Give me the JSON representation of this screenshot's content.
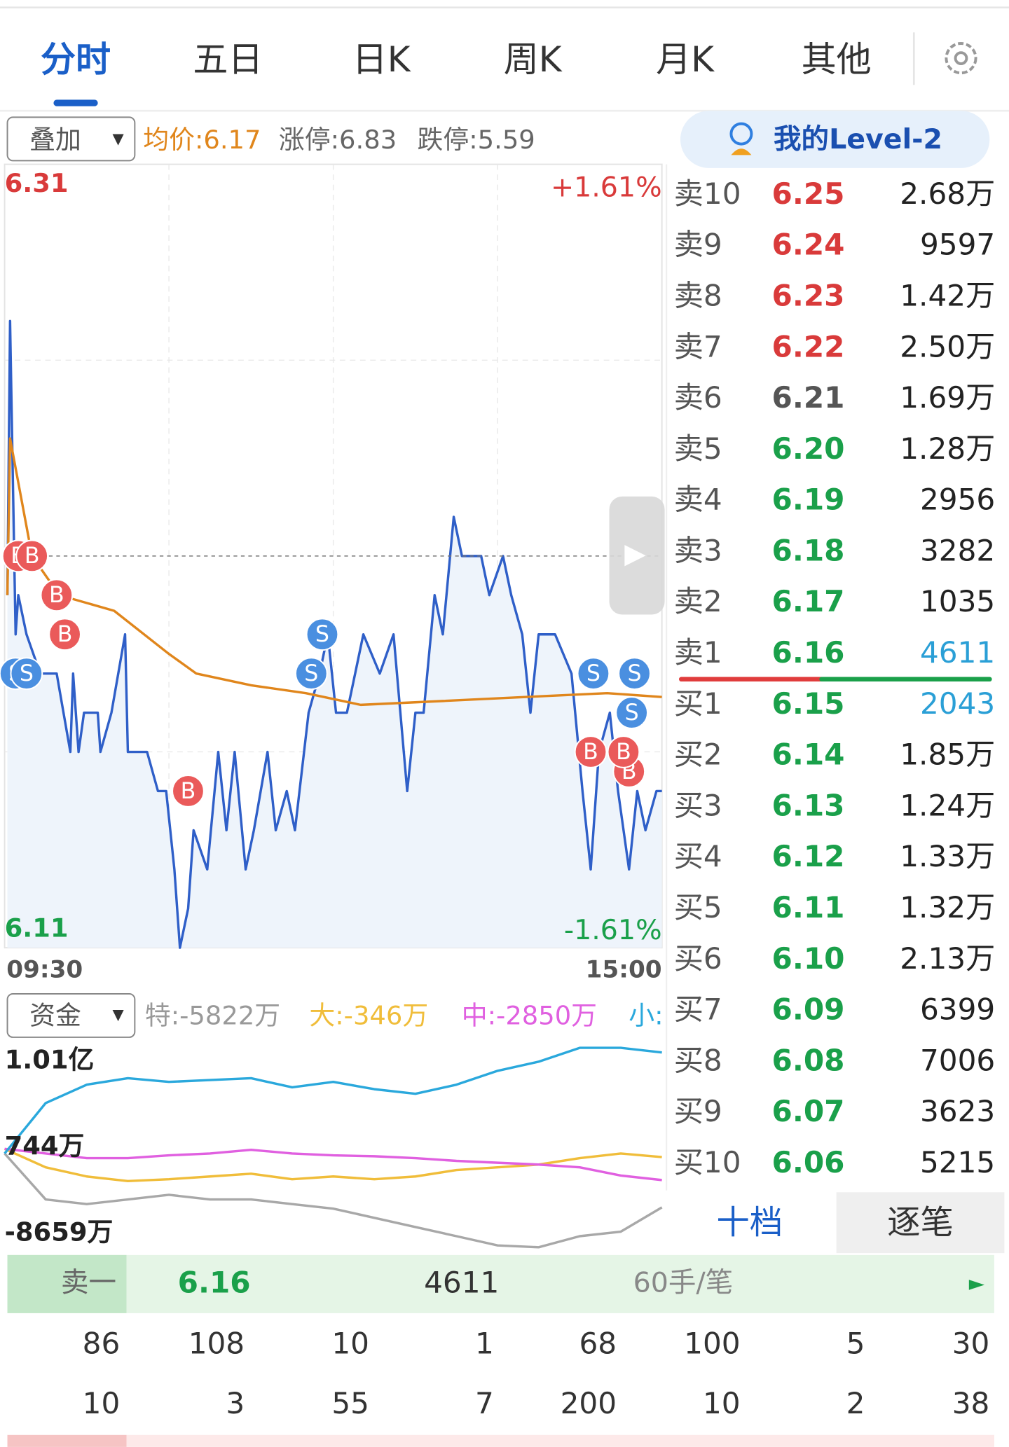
{
  "tabs": {
    "items": [
      "分时",
      "五日",
      "日K",
      "周K",
      "月K",
      "其他"
    ],
    "active": 0
  },
  "overlay": {
    "button": "叠加",
    "avg": "均价:6.17",
    "limit_up": "涨停:6.83",
    "limit_down": "跌停:5.59"
  },
  "level2": "我的Level-2",
  "fund_button": "资金",
  "chart_data": [
    {
      "type": "line",
      "pre_close": 6.21,
      "xlim": [
        0,
        240
      ],
      "xticks": [
        {
          "value": 0,
          "label": "09:30"
        },
        {
          "value": 240,
          "label": "15:00"
        }
      ],
      "ylim": [
        6.11,
        6.31
      ],
      "yticks": [
        6.11,
        6.31
      ],
      "y2lim": [
        -1.61,
        1.61
      ],
      "y2ticks": [
        {
          "value": -1.61,
          "label": "-1.61%"
        },
        {
          "value": 1.61,
          "label": "+1.61%"
        }
      ],
      "series": [
        {
          "color": "#2f5fc8",
          "fill": true,
          "x": [
            1,
            2,
            4,
            5,
            8,
            13,
            19,
            24,
            25,
            27,
            29,
            34,
            35,
            39,
            44,
            45,
            52,
            56,
            59,
            62,
            64,
            67,
            69,
            74,
            78,
            81,
            84,
            88,
            91,
            96,
            99,
            103,
            106,
            111,
            115,
            118,
            121,
            125,
            128,
            131,
            137,
            142,
            147,
            150,
            153,
            157,
            160,
            164,
            167,
            174,
            177,
            182,
            185,
            189,
            192,
            195,
            201,
            207,
            211,
            214,
            217,
            221,
            224,
            228,
            231,
            234,
            238,
            240
          ],
          "values": [
            6.2,
            6.27,
            6.19,
            6.2,
            6.19,
            6.18,
            6.18,
            6.16,
            6.18,
            6.16,
            6.17,
            6.17,
            6.16,
            6.17,
            6.19,
            6.16,
            6.16,
            6.15,
            6.15,
            6.13,
            6.11,
            6.12,
            6.14,
            6.13,
            6.16,
            6.14,
            6.16,
            6.13,
            6.14,
            6.16,
            6.14,
            6.15,
            6.14,
            6.17,
            6.18,
            6.19,
            6.17,
            6.17,
            6.18,
            6.19,
            6.18,
            6.19,
            6.15,
            6.17,
            6.17,
            6.2,
            6.19,
            6.22,
            6.21,
            6.21,
            6.2,
            6.21,
            6.2,
            6.19,
            6.17,
            6.19,
            6.19,
            6.18,
            6.15,
            6.13,
            6.16,
            6.17,
            6.15,
            6.13,
            6.15,
            6.14,
            6.15,
            6.15
          ]
        },
        {
          "color": "#e0861c",
          "fill": false,
          "x": [
            1,
            2,
            10,
            20,
            40,
            60,
            70,
            90,
            110,
            130,
            160,
            190,
            220,
            240
          ],
          "values": [
            6.2,
            6.24,
            6.21,
            6.2,
            6.196,
            6.185,
            6.18,
            6.177,
            6.175,
            6.172,
            6.173,
            6.174,
            6.175,
            6.174
          ]
        }
      ],
      "markers": [
        {
          "label": "S",
          "x": 4,
          "y": 6.18
        },
        {
          "label": "S",
          "x": 8,
          "y": 6.18
        },
        {
          "label": "B",
          "x": 5,
          "y": 6.21
        },
        {
          "label": "B",
          "x": 10,
          "y": 6.21
        },
        {
          "label": "B",
          "x": 19,
          "y": 6.2
        },
        {
          "label": "B",
          "x": 22,
          "y": 6.19
        },
        {
          "label": "B",
          "x": 67,
          "y": 6.15
        },
        {
          "label": "S",
          "x": 112,
          "y": 6.18
        },
        {
          "label": "S",
          "x": 116,
          "y": 6.19
        },
        {
          "label": "S",
          "x": 215,
          "y": 6.18
        },
        {
          "label": "S",
          "x": 230,
          "y": 6.18
        },
        {
          "label": "S",
          "x": 229,
          "y": 6.17
        },
        {
          "label": "B",
          "x": 214,
          "y": 6.16
        },
        {
          "label": "B",
          "x": 228,
          "y": 6.155
        },
        {
          "label": "B",
          "x": 226,
          "y": 6.16
        }
      ]
    },
    {
      "type": "line",
      "xlim": [
        0,
        240
      ],
      "x": [
        0,
        15,
        30,
        45,
        60,
        75,
        90,
        105,
        120,
        135,
        150,
        165,
        180,
        195,
        210,
        225,
        240
      ],
      "ylim": [
        -10700,
        12300
      ],
      "yticks": [
        {
          "value": 10100,
          "label": "1.01亿"
        },
        {
          "value": 744,
          "label": "744万"
        },
        {
          "value": -8659,
          "label": "-8659万"
        }
      ],
      "series": [
        {
          "name": "特:-5822万",
          "color": "#a8a8a8",
          "values": [
            44,
            -4956,
            -5456,
            -4956,
            -4456,
            -4956,
            -4956,
            -5456,
            -5956,
            -6956,
            -7956,
            -8956,
            -9956,
            -10156,
            -8956,
            -8456,
            -5822
          ]
        },
        {
          "name": "大:-346万",
          "color": "#f0bd3a",
          "values": [
            544,
            -1456,
            -2456,
            -2956,
            -2756,
            -2456,
            -2156,
            -2756,
            -2456,
            -2756,
            -2456,
            -1756,
            -1456,
            -1156,
            -456,
            44,
            -346
          ]
        },
        {
          "name": "中:-2850万",
          "color": "#e060e0",
          "values": [
            544,
            44,
            -456,
            -456,
            -156,
            44,
            444,
            44,
            -156,
            -256,
            -456,
            -756,
            -956,
            -1156,
            -1456,
            -2356,
            -2850
          ]
        },
        {
          "name": "小:",
          "color": "#2aa8dc",
          "values": [
            44,
            5544,
            7544,
            8244,
            7844,
            8044,
            8244,
            7244,
            7844,
            7044,
            6544,
            7544,
            9044,
            10044,
            11544,
            11544,
            11044
          ]
        }
      ]
    }
  ],
  "order_book": {
    "rows": [
      [
        "卖10",
        "6.25",
        "2.68万"
      ],
      [
        "卖9",
        "6.24",
        "9597"
      ],
      [
        "卖8",
        "6.23",
        "1.42万"
      ],
      [
        "卖7",
        "6.22",
        "2.50万"
      ],
      [
        "卖6",
        "6.21",
        "1.69万"
      ],
      [
        "卖5",
        "6.20",
        "1.28万"
      ],
      [
        "卖4",
        "6.19",
        "2956"
      ],
      [
        "卖3",
        "6.18",
        "3282"
      ],
      [
        "卖2",
        "6.17",
        "1035"
      ],
      [
        "卖1",
        "6.16",
        "4611"
      ],
      [
        "买1",
        "6.15",
        "2043"
      ],
      [
        "买2",
        "6.14",
        "1.85万"
      ],
      [
        "买3",
        "6.13",
        "1.24万"
      ],
      [
        "买4",
        "6.12",
        "1.33万"
      ],
      [
        "买5",
        "6.11",
        "1.32万"
      ],
      [
        "买6",
        "6.10",
        "2.13万"
      ],
      [
        "买7",
        "6.09",
        "6399"
      ],
      [
        "买8",
        "6.08",
        "7006"
      ],
      [
        "买9",
        "6.07",
        "3623"
      ],
      [
        "买10",
        "6.06",
        "5215"
      ]
    ],
    "tabs": [
      "十档",
      "逐笔"
    ]
  },
  "tick_summary": {
    "label": "卖一",
    "price": 6.16,
    "volume": 4611,
    "per_trade": "60手/笔"
  },
  "trades": [
    [
      86,
      108,
      10,
      1,
      68,
      100,
      5,
      30
    ],
    [
      10,
      3,
      55,
      7,
      200,
      10,
      2,
      38
    ]
  ]
}
